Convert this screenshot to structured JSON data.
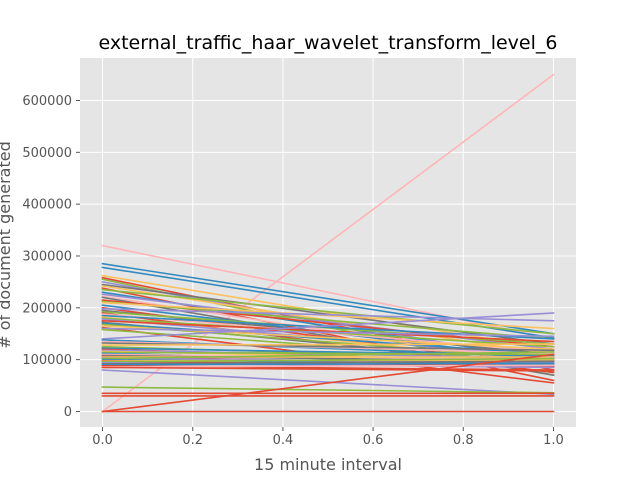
{
  "chart_data": {
    "type": "line",
    "title": "external_traffic_haar_wavelet_transform_level_6",
    "xlabel": "15 minute interval",
    "ylabel": "# of document generated",
    "xlim": [
      -0.05,
      1.05
    ],
    "ylim": [
      -30000,
      682000
    ],
    "x_ticks": [
      0.0,
      0.2,
      0.4,
      0.6,
      0.8,
      1.0
    ],
    "x_tick_labels": [
      "0.0",
      "0.2",
      "0.4",
      "0.6",
      "0.8",
      "1.0"
    ],
    "y_ticks": [
      0,
      100000,
      200000,
      300000,
      400000,
      500000,
      600000
    ],
    "y_tick_labels": [
      "0",
      "100000",
      "200000",
      "300000",
      "400000",
      "500000",
      "600000"
    ],
    "grid": true,
    "background": "#E5E5E5",
    "grid_color": "#FFFFFF",
    "x": [
      0,
      1
    ],
    "series": [
      {
        "values": [
          0,
          650000
        ],
        "color": "#FFB5B8"
      },
      {
        "values": [
          320000,
          140000
        ],
        "color": "#FFB5B8"
      },
      {
        "values": [
          285000,
          150000
        ],
        "color": "#348ABD"
      },
      {
        "values": [
          278000,
          142000
        ],
        "color": "#348ABD"
      },
      {
        "values": [
          262000,
          120000
        ],
        "color": "#FBC15E"
      },
      {
        "values": [
          258000,
          80000
        ],
        "color": "#E24A33"
      },
      {
        "values": [
          255000,
          70000
        ],
        "color": "#8EBA42"
      },
      {
        "values": [
          250000,
          95000
        ],
        "color": "#988ED5"
      },
      {
        "values": [
          245000,
          130000
        ],
        "color": "#777777"
      },
      {
        "values": [
          242000,
          110000
        ],
        "color": "#FBC15E"
      },
      {
        "values": [
          238000,
          60000
        ],
        "color": "#E24A33"
      },
      {
        "values": [
          235000,
          150000
        ],
        "color": "#8EBA42"
      },
      {
        "values": [
          230000,
          100000
        ],
        "color": "#348ABD"
      },
      {
        "values": [
          226000,
          120000
        ],
        "color": "#988ED5"
      },
      {
        "values": [
          222000,
          90000
        ],
        "color": "#FFB5B8"
      },
      {
        "values": [
          220000,
          70000
        ],
        "color": "#777777"
      },
      {
        "values": [
          215000,
          125000
        ],
        "color": "#E24A33"
      },
      {
        "values": [
          212000,
          140000
        ],
        "color": "#8EBA42"
      },
      {
        "values": [
          210000,
          160000
        ],
        "color": "#FBC15E"
      },
      {
        "values": [
          205000,
          100000
        ],
        "color": "#348ABD"
      },
      {
        "values": [
          200000,
          85000
        ],
        "color": "#E24A33"
      },
      {
        "values": [
          198000,
          175000
        ],
        "color": "#988ED5"
      },
      {
        "values": [
          195000,
          110000
        ],
        "color": "#777777"
      },
      {
        "values": [
          192000,
          130000
        ],
        "color": "#8EBA42"
      },
      {
        "values": [
          190000,
          75000
        ],
        "color": "#E24A33"
      },
      {
        "values": [
          188000,
          115000
        ],
        "color": "#FFB5B8"
      },
      {
        "values": [
          185000,
          140000
        ],
        "color": "#348ABD"
      },
      {
        "values": [
          182000,
          95000
        ],
        "color": "#FBC15E"
      },
      {
        "values": [
          180000,
          125000
        ],
        "color": "#8EBA42"
      },
      {
        "values": [
          178000,
          105000
        ],
        "color": "#988ED5"
      },
      {
        "values": [
          175000,
          135000
        ],
        "color": "#E24A33"
      },
      {
        "values": [
          172000,
          90000
        ],
        "color": "#777777"
      },
      {
        "values": [
          170000,
          110000
        ],
        "color": "#348ABD"
      },
      {
        "values": [
          168000,
          100000
        ],
        "color": "#8EBA42"
      },
      {
        "values": [
          165000,
          120000
        ],
        "color": "#FBC15E"
      },
      {
        "values": [
          162000,
          55000
        ],
        "color": "#E24A33"
      },
      {
        "values": [
          160000,
          145000
        ],
        "color": "#988ED5"
      },
      {
        "values": [
          158000,
          95000
        ],
        "color": "#8EBA42"
      },
      {
        "values": [
          140000,
          190000
        ],
        "color": "#988ED5"
      },
      {
        "values": [
          138000,
          105000
        ],
        "color": "#348ABD"
      },
      {
        "values": [
          135000,
          112000
        ],
        "color": "#FFB5B8"
      },
      {
        "values": [
          132000,
          118000
        ],
        "color": "#777777"
      },
      {
        "values": [
          128000,
          130000
        ],
        "color": "#FBC15E"
      },
      {
        "values": [
          125000,
          100000
        ],
        "color": "#8EBA42"
      },
      {
        "values": [
          122000,
          108000
        ],
        "color": "#348ABD"
      },
      {
        "values": [
          120000,
          95000
        ],
        "color": "#E24A33"
      },
      {
        "values": [
          118000,
          103000
        ],
        "color": "#988ED5"
      },
      {
        "values": [
          116000,
          98000
        ],
        "color": "#FBC15E"
      },
      {
        "values": [
          114000,
          110000
        ],
        "color": "#8EBA42"
      },
      {
        "values": [
          112000,
          92000
        ],
        "color": "#348ABD"
      },
      {
        "values": [
          110000,
          100000
        ],
        "color": "#FFB5B8"
      },
      {
        "values": [
          108000,
          96000
        ],
        "color": "#777777"
      },
      {
        "values": [
          106000,
          88000
        ],
        "color": "#E24A33"
      },
      {
        "values": [
          105000,
          105000
        ],
        "color": "#FBC15E"
      },
      {
        "values": [
          103000,
          94000
        ],
        "color": "#988ED5"
      },
      {
        "values": [
          102000,
          115000
        ],
        "color": "#8EBA42"
      },
      {
        "values": [
          100000,
          91000
        ],
        "color": "#348ABD"
      },
      {
        "values": [
          98000,
          99000
        ],
        "color": "#FBC15E"
      },
      {
        "values": [
          97000,
          87000
        ],
        "color": "#E24A33"
      },
      {
        "values": [
          96000,
          102000
        ],
        "color": "#8EBA42"
      },
      {
        "values": [
          94000,
          85000
        ],
        "color": "#988ED5"
      },
      {
        "values": [
          92000,
          97000
        ],
        "color": "#777777"
      },
      {
        "values": [
          90000,
          93000
        ],
        "color": "#348ABD"
      },
      {
        "values": [
          88000,
          80000
        ],
        "color": "#E24A33"
      },
      {
        "values": [
          86000,
          89000
        ],
        "color": "#FFB5B8"
      },
      {
        "values": [
          85000,
          78000
        ],
        "color": "#E24A33"
      },
      {
        "values": [
          80000,
          33000
        ],
        "color": "#988ED5"
      },
      {
        "values": [
          47000,
          36000
        ],
        "color": "#8EBA42"
      },
      {
        "values": [
          35000,
          35000
        ],
        "color": "#E24A33"
      },
      {
        "values": [
          30000,
          30000
        ],
        "color": "#E24A33"
      },
      {
        "values": [
          0,
          0
        ],
        "color": "#E24A33"
      },
      {
        "values": [
          0,
          110000
        ],
        "color": "#E24A33"
      }
    ]
  }
}
